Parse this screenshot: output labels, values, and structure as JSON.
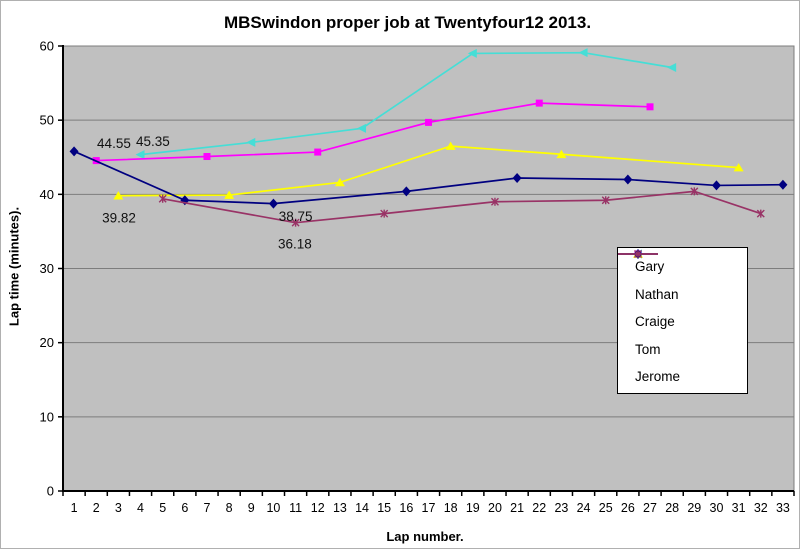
{
  "chart_data": {
    "type": "line",
    "title": "MBSwindon proper job at Twentyfour12 2013.",
    "xlabel": "Lap number.",
    "ylabel": "Lap time (minutes).",
    "xticks": [
      1,
      2,
      3,
      4,
      5,
      6,
      7,
      8,
      9,
      10,
      11,
      12,
      13,
      14,
      15,
      16,
      17,
      18,
      19,
      20,
      21,
      22,
      23,
      24,
      25,
      26,
      27,
      28,
      29,
      30,
      31,
      32,
      33
    ],
    "yticks": [
      0,
      10,
      20,
      30,
      40,
      50,
      60
    ],
    "ylim": [
      0,
      60
    ],
    "grid": true,
    "plot_background": "#c0c0c0",
    "gridline_color": "#7d7d7d",
    "axis_color": "#000000",
    "legend_position": "middle-right-inside",
    "series": [
      {
        "name": "Gary",
        "color": "#45ded6",
        "marker": "triangle-left",
        "x": [
          4,
          9,
          14,
          19,
          24,
          28
        ],
        "values": [
          45.35,
          47.0,
          48.9,
          59.0,
          59.1,
          57.1
        ]
      },
      {
        "name": "Nathan",
        "color": "#ff00ff",
        "marker": "square",
        "x": [
          2,
          7,
          12,
          17,
          22,
          27
        ],
        "values": [
          44.55,
          45.1,
          45.7,
          49.7,
          52.3,
          51.8
        ]
      },
      {
        "name": "Craige",
        "color": "#ffff00",
        "marker": "triangle",
        "x": [
          3,
          8,
          13,
          18,
          23,
          31
        ],
        "values": [
          39.82,
          39.9,
          41.6,
          46.5,
          45.4,
          43.6
        ]
      },
      {
        "name": "Tom",
        "color": "#000080",
        "marker": "diamond",
        "x": [
          1,
          6,
          10,
          16,
          21,
          26,
          30,
          33
        ],
        "values": [
          45.8,
          39.2,
          38.75,
          40.4,
          42.2,
          42.0,
          41.2,
          41.3
        ]
      },
      {
        "name": "Jerome",
        "color": "#993366",
        "marker": "star",
        "x": [
          5,
          11,
          15,
          20,
          25,
          29,
          32
        ],
        "values": [
          39.4,
          36.18,
          37.4,
          39.0,
          39.2,
          40.4,
          37.4
        ]
      }
    ],
    "annotations": [
      {
        "text": "44.55",
        "x": 2.8,
        "y": 46.9
      },
      {
        "text": "45.35",
        "x": 4.56,
        "y": 47.2
      },
      {
        "text": "39.82",
        "x": 3.03,
        "y": 36.9
      },
      {
        "text": "38.75",
        "x": 11.0,
        "y": 37.1
      },
      {
        "text": "36.18",
        "x": 10.97,
        "y": 33.4
      }
    ]
  }
}
